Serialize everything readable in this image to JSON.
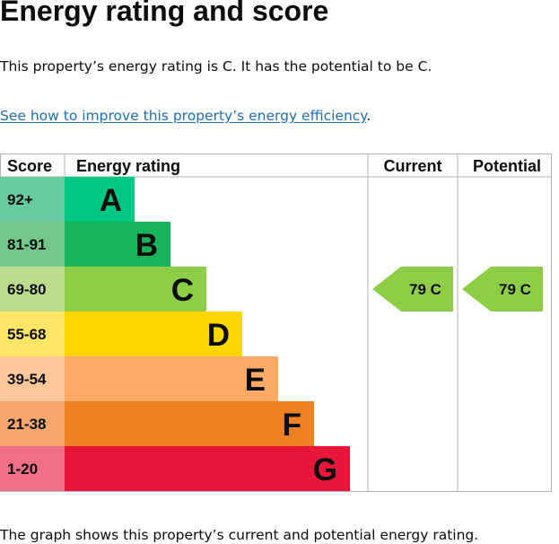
{
  "heading": "Energy rating and score",
  "intro": {
    "text": "This property’s energy rating is C. It has the potential to be C."
  },
  "improve": {
    "link_text": "See how to improve this property’s energy efficiency",
    "suffix": "."
  },
  "chart": {
    "headers": {
      "score": "Score",
      "energy_rating": "Energy rating",
      "current": "Current",
      "potential": "Potential"
    },
    "bands": [
      {
        "range": "92+",
        "letter": "A",
        "color": "#00c781",
        "score_bg": "#67cba0"
      },
      {
        "range": "81-91",
        "letter": "B",
        "color": "#19b459",
        "score_bg": "#74c68b"
      },
      {
        "range": "69-80",
        "letter": "C",
        "color": "#8dce46",
        "score_bg": "#badc8b"
      },
      {
        "range": "55-68",
        "letter": "D",
        "color": "#ffd500",
        "score_bg": "#ffe666"
      },
      {
        "range": "39-54",
        "letter": "E",
        "color": "#fcaa65",
        "score_bg": "#fdc79b"
      },
      {
        "range": "21-38",
        "letter": "F",
        "color": "#ef8023",
        "score_bg": "#f4a66d"
      },
      {
        "range": "1-20",
        "letter": "G",
        "color": "#e9153b",
        "score_bg": "#f06f87"
      }
    ],
    "current": {
      "label": "79 C",
      "score": 79,
      "band": "C",
      "color": "#8dce46"
    },
    "potential": {
      "label": "79 C",
      "score": 79,
      "band": "C",
      "color": "#8dce46"
    }
  },
  "footer": {
    "text": "The graph shows this property’s current and potential energy rating."
  }
}
